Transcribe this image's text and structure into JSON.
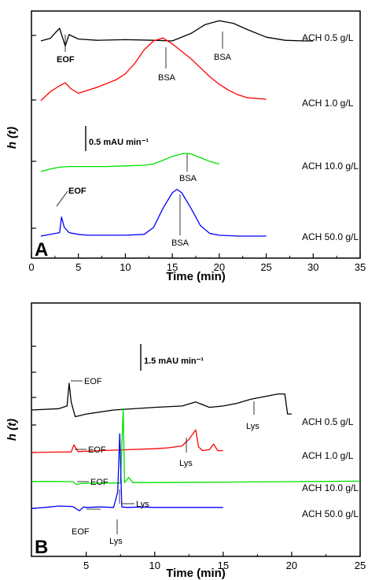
{
  "chart_data": [
    {
      "panel": "A",
      "type": "line",
      "xlabel": "Time (min)",
      "ylabel": "h (t)",
      "xlim": [
        0,
        35
      ],
      "xticks": [
        0,
        5,
        10,
        15,
        20,
        25,
        30,
        35
      ],
      "scale_bar": "0.5 mAU min⁻¹",
      "series": [
        {
          "name": "ACH 0.5 g/L",
          "color": "#000000",
          "x": [
            1,
            2,
            2.6,
            3,
            3.3,
            3.6,
            4,
            5,
            7,
            10,
            13,
            15,
            17,
            18.5,
            20,
            21.5,
            23,
            25,
            27,
            29,
            30
          ],
          "y": [
            0,
            0.2,
            0.7,
            1.0,
            0.3,
            -0.4,
            0.5,
            0.15,
            0.05,
            0.1,
            0.05,
            0,
            0.6,
            1.3,
            1.6,
            1.4,
            0.9,
            0.3,
            0.05,
            0,
            0
          ]
        },
        {
          "name": "ACH 1.0 g/L",
          "color": "#ff0000",
          "x": [
            1,
            2,
            3,
            3.6,
            4.2,
            5,
            7,
            9,
            10,
            11,
            12,
            13,
            14,
            15,
            16,
            17,
            18,
            19,
            20,
            21,
            22,
            23,
            25
          ],
          "y": [
            0,
            0.6,
            1.0,
            1.2,
            0.8,
            0.5,
            0.9,
            1.4,
            1.8,
            2.5,
            3.4,
            4.0,
            4.2,
            3.8,
            3.3,
            2.8,
            2.2,
            1.6,
            1.1,
            0.7,
            0.4,
            0.2,
            0.1
          ]
        },
        {
          "name": "ACH 10.0 g/L",
          "color": "#00e000",
          "x": [
            1,
            2,
            3,
            4,
            6,
            8,
            10,
            12,
            13,
            14,
            15,
            16,
            16.5,
            17,
            18,
            19,
            20
          ],
          "y": [
            0,
            0.2,
            0.35,
            0.4,
            0.4,
            0.4,
            0.45,
            0.5,
            0.6,
            0.9,
            1.2,
            1.4,
            1.45,
            1.4,
            1.1,
            0.8,
            0.6
          ]
        },
        {
          "name": "ACH 50.0 g/L",
          "color": "#0000ff",
          "x": [
            1,
            3,
            3.2,
            3.5,
            4,
            5,
            6,
            8,
            10,
            12,
            13,
            14,
            15,
            15.5,
            16,
            17,
            18,
            19,
            20,
            22,
            25
          ],
          "y": [
            0,
            0.2,
            1.1,
            0.5,
            0.2,
            0.1,
            0.05,
            0.05,
            0.05,
            0.1,
            0.5,
            1.6,
            2.5,
            2.7,
            2.5,
            1.6,
            0.6,
            0.15,
            0.05,
            0,
            0
          ]
        }
      ],
      "annotations": [
        "EOF",
        "EOF",
        "BSA",
        "BSA",
        "BSA",
        "BSA"
      ],
      "panel_label": "A"
    },
    {
      "panel": "B",
      "type": "line",
      "xlabel": "Time (min)",
      "ylabel": "h (t)",
      "xlim": [
        1,
        25
      ],
      "xticks": [
        5,
        10,
        15,
        20,
        25
      ],
      "scale_bar": "1.5 mAU min⁻¹",
      "series": [
        {
          "name": "ACH 0.5 g/L",
          "color": "#000000",
          "x": [
            1,
            3,
            3.6,
            3.75,
            3.9,
            4.2,
            5,
            7,
            10,
            12,
            13,
            14,
            15,
            16,
            17,
            18,
            19,
            19.5,
            19.7,
            20
          ],
          "y": [
            0,
            0.1,
            0.3,
            2.0,
            0.6,
            -0.5,
            -0.3,
            0,
            0.2,
            0.3,
            0.6,
            0.2,
            0.3,
            0.5,
            0.8,
            1.0,
            1.2,
            1.2,
            -0.3,
            -0.3
          ]
        },
        {
          "name": "ACH 1.0 g/L",
          "color": "#ff0000",
          "x": [
            1,
            3,
            3.9,
            4.1,
            4.4,
            6,
            8,
            10,
            11,
            12,
            12.5,
            12.8,
            13,
            13.2,
            13.5,
            14,
            14.3,
            14.6,
            15
          ],
          "y": [
            0,
            0.05,
            0.05,
            0.8,
            0.1,
            0.2,
            0.3,
            0.4,
            0.5,
            0.7,
            1.4,
            2.0,
            2.4,
            0.6,
            0.2,
            0.3,
            0.9,
            0.2,
            0.2
          ]
        },
        {
          "name": "ACH 10.0 g/L",
          "color": "#00e000",
          "x": [
            1,
            2,
            4,
            4.3,
            4.6,
            6,
            7.5,
            7.7,
            7.8,
            8.1,
            8.4,
            10,
            15,
            20,
            25
          ],
          "y": [
            0,
            0.05,
            0,
            -0.6,
            -0.4,
            -0.3,
            -0.3,
            15.5,
            -0.2,
            0.9,
            -0.2,
            -0.2,
            -0.1,
            0,
            0.1
          ]
        },
        {
          "name": "ACH 50.0 g/L",
          "color": "#0000ff",
          "x": [
            1,
            2,
            3,
            4,
            4.5,
            4.8,
            5,
            6,
            7,
            7.3,
            7.45,
            7.6,
            8,
            9,
            10,
            12,
            15
          ],
          "y": [
            0,
            0.2,
            0.5,
            0.4,
            -0.5,
            0.3,
            0.2,
            0.3,
            0.2,
            3.5,
            15.8,
            0.3,
            0.2,
            0.3,
            0.2,
            0.2,
            0.2
          ]
        }
      ],
      "annotations": [
        "EOF",
        "EOF",
        "EOF",
        "EOF",
        "Lys",
        "Lys",
        "Lys",
        "Lys"
      ],
      "panel_label": "B"
    }
  ]
}
